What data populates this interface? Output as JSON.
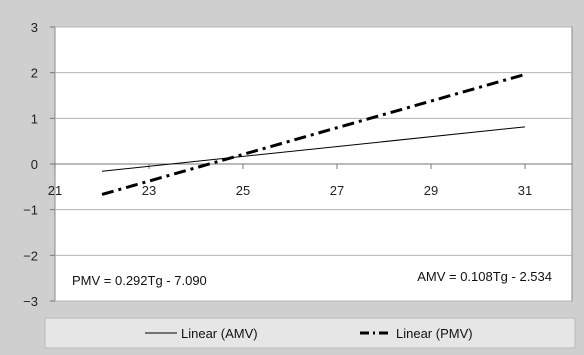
{
  "chart_data": {
    "type": "line",
    "x_ticks": [
      21,
      23,
      25,
      27,
      29,
      31
    ],
    "y_ticks": [
      3,
      2,
      1,
      0,
      -1,
      -2,
      -3
    ],
    "xlim": [
      21,
      32
    ],
    "ylim": [
      -3,
      3
    ],
    "grid": "horizontal",
    "legend_position": "bottom",
    "series": [
      {
        "name": "Linear (AMV)",
        "x": [
          22,
          31
        ],
        "y": [
          -0.158,
          0.814
        ],
        "style": "solid",
        "color": "#000000"
      },
      {
        "name": "Linear (PMV)",
        "x": [
          22,
          31
        ],
        "y": [
          -0.666,
          1.962
        ],
        "style": "dash-dot",
        "color": "#000000"
      }
    ],
    "annotations": [
      {
        "id": "pmv-eq",
        "text": "PMV = 0.292Tg - 7.090"
      },
      {
        "id": "amv-eq",
        "text": "AMV = 0.108Tg - 2.534"
      }
    ]
  }
}
